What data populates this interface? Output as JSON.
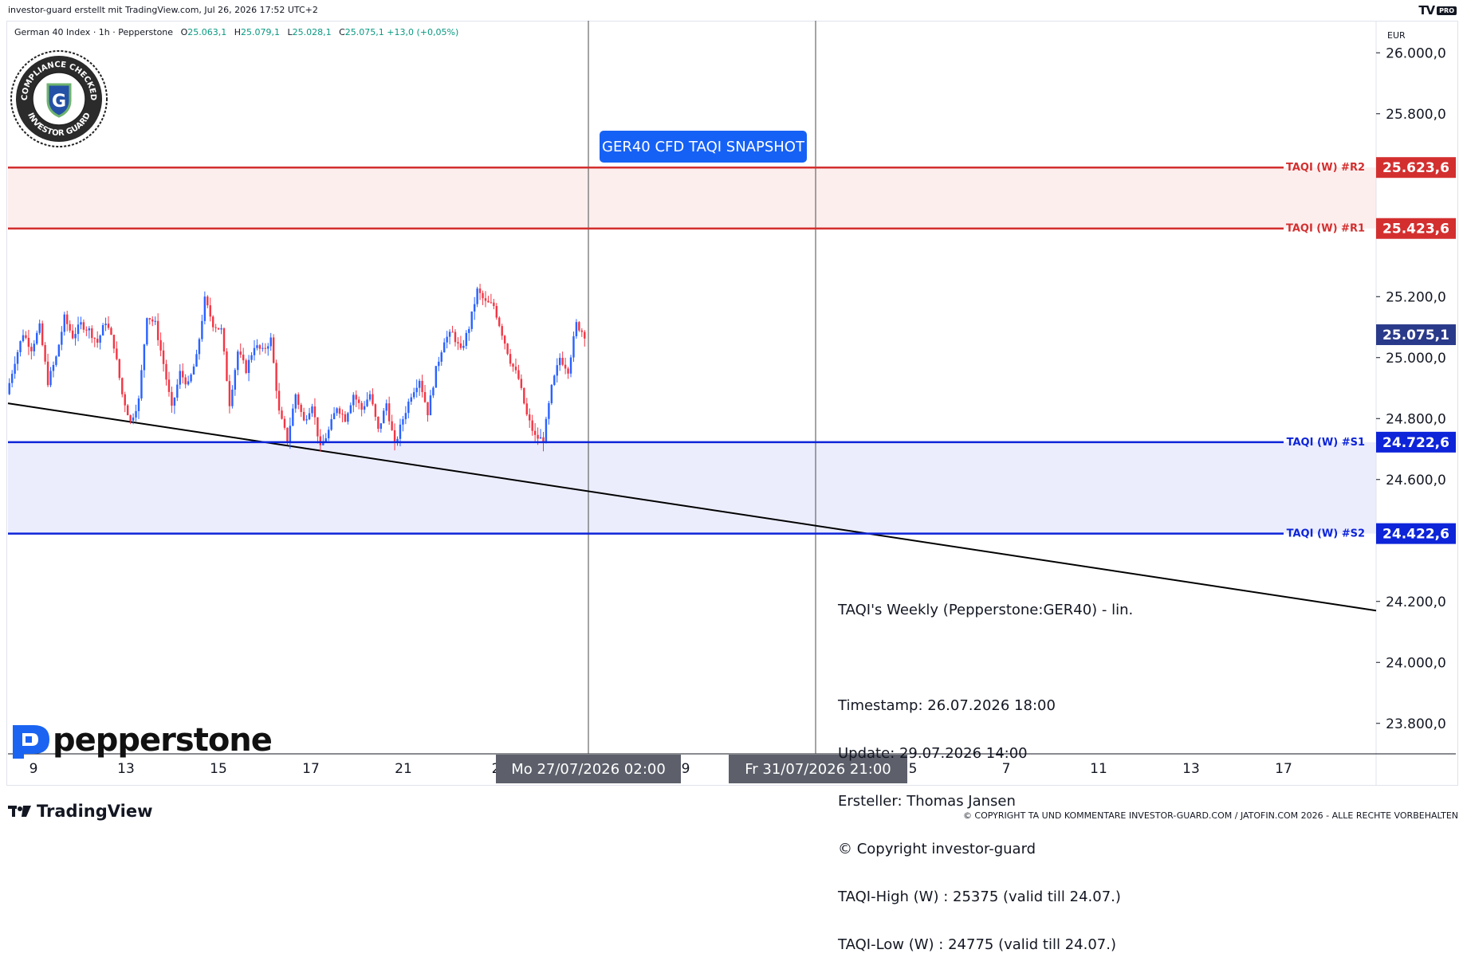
{
  "top_caption": "investor-guard erstellt mit TradingView.com, Jul 26, 2026 17:52 UTC+2",
  "brand": {
    "tv_pro": "TV",
    "tv_pro_badge": "PRO",
    "tradingview": "TradingView",
    "pepperstone": "pepperstone"
  },
  "header": {
    "instrument": "German 40 Index · 1h · Pepperstone",
    "open_lbl": "O",
    "open": "25.063,1",
    "high_lbl": "H",
    "high": "25.079,1",
    "low_lbl": "L",
    "low": "25.028,1",
    "close_lbl": "C",
    "close": "25.075,1",
    "change": "+13,0 (+0,05%)"
  },
  "price_axis": {
    "currency": "EUR"
  },
  "snapshot_label": "GER40 CFD TAQI SNAPSHOT",
  "info": {
    "title": "TAQI's Weekly (Pepperstone:GER40) - lin.",
    "lines": [
      "Timestamp: 26.07.2026 18:00",
      "Update: 29.07.2026 14:00",
      "Ersteller: Thomas Jansen",
      "© Copyright investor-guard",
      "TAQI-High (W) : 25375 (valid till 24.07.)",
      "TAQI-Low (W) : 24775 (valid till 24.07.)"
    ]
  },
  "seal": {
    "top_text": "COMPLIANCE CHECKED",
    "bottom_text": "INVESTOR GUARD",
    "letter": "G"
  },
  "footer_copyright": "© COPYRIGHT TA UND KOMMENTARE INVESTOR-GUARD.COM / JATOFIN.COM 2026 - ALLE RECHTE VORBEHALTEN",
  "colors": {
    "up": "#2962ff",
    "down": "#f23645",
    "resistance": "#d32f2f",
    "support": "#0d24d9",
    "accent": "#1661f5",
    "last_price": "#2a3a8a",
    "trendline": "#000000"
  },
  "chart_data": {
    "type": "candlestick",
    "ylim": [
      23700,
      26100
    ],
    "y_ticks": [
      23800,
      24000,
      24200,
      24400,
      24600,
      24800,
      25000,
      25200,
      25400,
      25600,
      25800,
      26000
    ],
    "y_tick_labels": [
      "23.800,0",
      "24.000,0",
      "24.200,0",
      "24.400,0",
      "24.600,0",
      "24.800,0",
      "25.000,0",
      "25.200,0",
      "25.400,0",
      "25.600,0",
      "25.800,0",
      "26.000,0"
    ],
    "x_tick_labels": [
      "9",
      "13",
      "15",
      "17",
      "21",
      "2",
      "9",
      "5",
      "7",
      "11",
      "13",
      "17"
    ],
    "x_crosshair_labels": [
      "Mo 27/07/2026   02:00",
      "Fr 31/07/2026   21:00"
    ],
    "last_price": {
      "value": 25075.1,
      "label": "25.075,1"
    },
    "levels": [
      {
        "name": "TAQI (W) #R2",
        "value": 25623.6,
        "label": "25.623,6",
        "kind": "resistance"
      },
      {
        "name": "TAQI (W) #R1",
        "value": 25423.6,
        "label": "25.423,6",
        "kind": "resistance"
      },
      {
        "name": "TAQI (W) #S1",
        "value": 24722.6,
        "label": "24.722,6",
        "kind": "support"
      },
      {
        "name": "TAQI (W) #S2",
        "value": 24422.6,
        "label": "24.422,6",
        "kind": "support"
      }
    ],
    "trendline": {
      "start": 24850,
      "end": 24170
    },
    "price_path": [
      24880,
      24990,
      25080,
      25030,
      25100,
      24920,
      25000,
      25130,
      25070,
      25110,
      25090,
      25050,
      25120,
      25040,
      24880,
      24790,
      24860,
      25140,
      25110,
      24980,
      24830,
      24950,
      24910,
      25000,
      25190,
      25110,
      25090,
      24850,
      25020,
      24960,
      25040,
      25020,
      25060,
      24820,
      24730,
      24880,
      24790,
      24850,
      24700,
      24760,
      24840,
      24800,
      24880,
      24830,
      24880,
      24760,
      24850,
      24710,
      24800,
      24880,
      24930,
      24820,
      24960,
      25060,
      25080,
      25020,
      25100,
      25220,
      25180,
      25170,
      25080,
      24990,
      24930,
      24810,
      24740,
      24730,
      24900,
      25000,
      24960,
      25110,
      25075
    ]
  }
}
